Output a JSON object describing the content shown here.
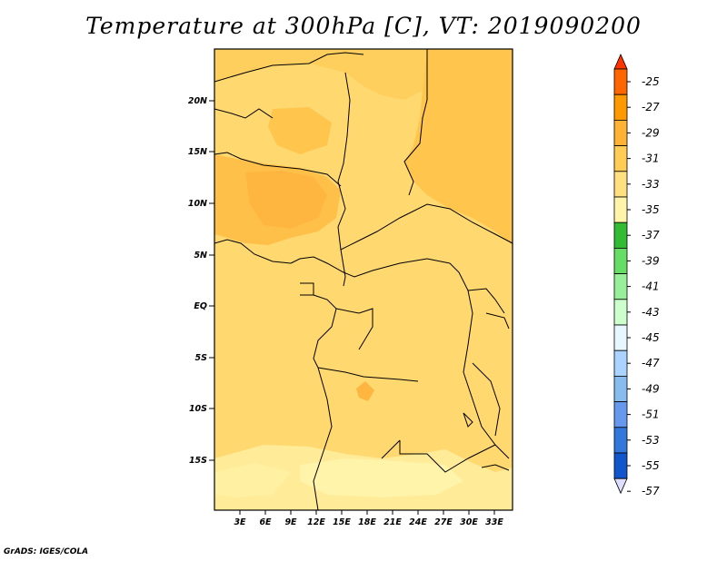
{
  "title": "Temperature at 300hPa [C], VT: 2019090200",
  "credit": "GrADS: IGES/COLA",
  "map": {
    "lon_range": [
      0,
      35
    ],
    "lat_range": [
      -20,
      25
    ],
    "lat_labels": [
      "20N",
      "15N",
      "10N",
      "5N",
      "EQ",
      "5S",
      "10S",
      "15S"
    ],
    "lon_labels": [
      "3E",
      "6E",
      "9E",
      "12E",
      "15E",
      "18E",
      "21E",
      "24E",
      "27E",
      "30E",
      "33E"
    ]
  },
  "colorbar": {
    "labels": [
      "-25",
      "-27",
      "-29",
      "-31",
      "-33",
      "-35",
      "-37",
      "-39",
      "-41",
      "-43",
      "-45",
      "-47",
      "-49",
      "-51",
      "-53",
      "-55",
      "-57"
    ],
    "colors": [
      "#ff6600",
      "#ff9900",
      "#ffb233",
      "#ffcc55",
      "#ffe080",
      "#fff4aa",
      "#33bb33",
      "#66dd66",
      "#99ee99",
      "#ccffcc",
      "#e6f7ff",
      "#aad4ff",
      "#88bbee",
      "#6699ee",
      "#3377dd",
      "#1155cc",
      "#0033aa",
      "#000066"
    ],
    "top_arrow_color": "#ff3300",
    "bottom_arrow_color": "#ddddff"
  }
}
